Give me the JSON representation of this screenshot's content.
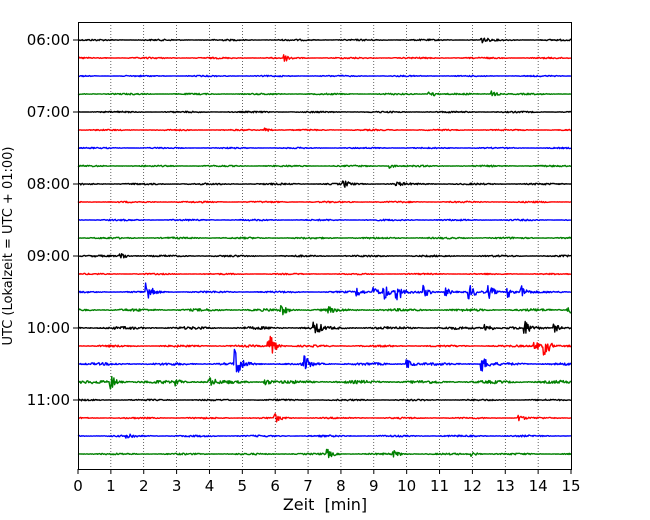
{
  "chart_data": {
    "type": "line",
    "title": "",
    "xlabel": "Zeit  [min]",
    "ylabel": "UTC (Lokalzeit = UTC + 01:00)",
    "xlim": [
      0,
      15
    ],
    "x_ticks": [
      "0",
      "1",
      "2",
      "3",
      "4",
      "5",
      "6",
      "7",
      "8",
      "9",
      "10",
      "11",
      "12",
      "13",
      "14",
      "15"
    ],
    "y_tick_labels": [
      "06:00",
      "07:00",
      "08:00",
      "09:00",
      "10:00",
      "11:00"
    ],
    "grid": "vertical dotted lines at each minute",
    "legend": "none",
    "trace_interval_minutes": 15,
    "color_cycle": [
      "#000000",
      "#ff0000",
      "#0000ff",
      "#008000"
    ],
    "series": [
      {
        "start": "06:00",
        "color": "#000000",
        "noise": 0.8,
        "events": [
          {
            "x": 12.3,
            "amp": 2.5
          }
        ]
      },
      {
        "start": "06:15",
        "color": "#ff0000",
        "noise": 0.8,
        "events": [
          {
            "x": 6.3,
            "amp": 3
          }
        ]
      },
      {
        "start": "06:30",
        "color": "#0000ff",
        "noise": 0.7,
        "events": []
      },
      {
        "start": "06:45",
        "color": "#008000",
        "noise": 0.8,
        "events": [
          {
            "x": 10.7,
            "amp": 4
          },
          {
            "x": 12.6,
            "amp": 3
          }
        ]
      },
      {
        "start": "07:00",
        "color": "#000000",
        "noise": 0.8,
        "events": []
      },
      {
        "start": "07:15",
        "color": "#ff0000",
        "noise": 0.7,
        "events": [
          {
            "x": 5.7,
            "amp": 2
          }
        ]
      },
      {
        "start": "07:30",
        "color": "#0000ff",
        "noise": 0.7,
        "events": []
      },
      {
        "start": "07:45",
        "color": "#008000",
        "noise": 0.8,
        "events": [
          {
            "x": 9.5,
            "amp": 2
          }
        ]
      },
      {
        "start": "08:00",
        "color": "#000000",
        "noise": 0.9,
        "events": [
          {
            "x": 8.1,
            "amp": 3
          },
          {
            "x": 9.7,
            "amp": 2
          }
        ]
      },
      {
        "start": "08:15",
        "color": "#ff0000",
        "noise": 0.8,
        "events": []
      },
      {
        "start": "08:30",
        "color": "#0000ff",
        "noise": 0.8,
        "events": []
      },
      {
        "start": "08:45",
        "color": "#008000",
        "noise": 0.9,
        "events": []
      },
      {
        "start": "09:00",
        "color": "#000000",
        "noise": 0.9,
        "events": [
          {
            "x": 1.3,
            "amp": 4
          }
        ]
      },
      {
        "start": "09:15",
        "color": "#ff0000",
        "noise": 0.7,
        "events": []
      },
      {
        "start": "09:30",
        "color": "#0000ff",
        "noise": 0.9,
        "events": [
          {
            "x": 2.1,
            "amp": 10
          },
          {
            "x": 8.5,
            "amp": 4
          },
          {
            "x": 9.0,
            "amp": 5
          },
          {
            "x": 9.3,
            "amp": 9
          },
          {
            "x": 9.7,
            "amp": 10
          },
          {
            "x": 10.5,
            "amp": 6
          },
          {
            "x": 11.2,
            "amp": 4
          },
          {
            "x": 11.9,
            "amp": 7
          },
          {
            "x": 12.5,
            "amp": 6
          },
          {
            "x": 13.1,
            "amp": 5
          },
          {
            "x": 13.5,
            "amp": 6
          }
        ]
      },
      {
        "start": "09:45",
        "color": "#008000",
        "noise": 1.3,
        "events": [
          {
            "x": 6.2,
            "amp": 5
          },
          {
            "x": 7.6,
            "amp": 3
          },
          {
            "x": 14.9,
            "amp": 5
          }
        ]
      },
      {
        "start": "10:00",
        "color": "#000000",
        "noise": 1.4,
        "events": [
          {
            "x": 7.2,
            "amp": 7
          },
          {
            "x": 12.4,
            "amp": 5
          },
          {
            "x": 13.6,
            "amp": 6
          },
          {
            "x": 14.5,
            "amp": 4
          }
        ]
      },
      {
        "start": "10:15",
        "color": "#ff0000",
        "noise": 1.0,
        "events": [
          {
            "x": 5.8,
            "amp": 14
          },
          {
            "x": 13.9,
            "amp": 5
          },
          {
            "x": 14.2,
            "amp": 10
          }
        ]
      },
      {
        "start": "10:30",
        "color": "#0000ff",
        "noise": 1.3,
        "events": [
          {
            "x": 4.8,
            "amp": 16
          },
          {
            "x": 6.9,
            "amp": 7
          },
          {
            "x": 10.0,
            "amp": 5
          },
          {
            "x": 12.3,
            "amp": 7
          }
        ]
      },
      {
        "start": "10:45",
        "color": "#008000",
        "noise": 1.6,
        "events": [
          {
            "x": 1.0,
            "amp": 7
          },
          {
            "x": 3.0,
            "amp": 3
          },
          {
            "x": 4.0,
            "amp": 4
          },
          {
            "x": 5.7,
            "amp": 3
          }
        ]
      },
      {
        "start": "11:00",
        "color": "#000000",
        "noise": 0.8,
        "events": []
      },
      {
        "start": "11:15",
        "color": "#ff0000",
        "noise": 0.8,
        "events": [
          {
            "x": 6.0,
            "amp": 4
          },
          {
            "x": 13.4,
            "amp": 3
          }
        ]
      },
      {
        "start": "11:30",
        "color": "#0000ff",
        "noise": 0.9,
        "events": [
          {
            "x": 1.5,
            "amp": 3
          }
        ]
      },
      {
        "start": "11:45",
        "color": "#008000",
        "noise": 0.9,
        "events": [
          {
            "x": 7.6,
            "amp": 4
          },
          {
            "x": 9.6,
            "amp": 3
          },
          {
            "x": 12.0,
            "amp": 2
          }
        ]
      }
    ]
  }
}
